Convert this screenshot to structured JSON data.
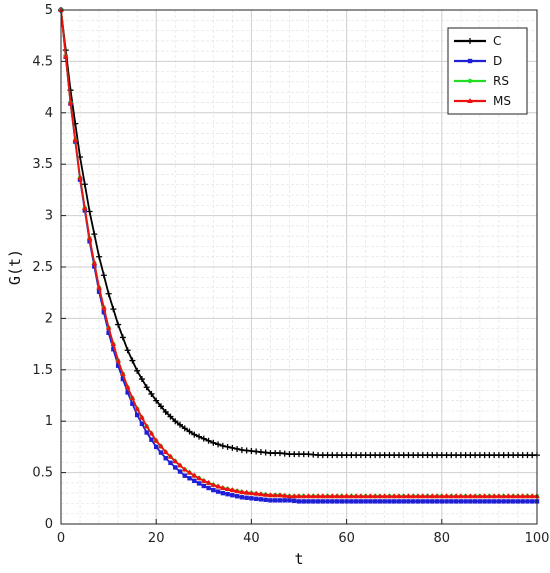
{
  "chart_data": {
    "type": "line",
    "title": "",
    "xlabel": "t",
    "ylabel": "G(t)",
    "xlim": [
      0,
      100
    ],
    "ylim": [
      0,
      5
    ],
    "x_ticks": [
      "0",
      "20",
      "40",
      "60",
      "80",
      "100"
    ],
    "y_ticks": [
      "0",
      "0.5",
      "1",
      "1.5",
      "2",
      "2.5",
      "3",
      "3.5",
      "4",
      "4.5",
      "5"
    ],
    "grid": true,
    "minor_grid": true,
    "legend_position": "top-right",
    "x": [
      0,
      2,
      4,
      6,
      8,
      10,
      12,
      14,
      16,
      18,
      20,
      22,
      24,
      26,
      28,
      30,
      32,
      34,
      36,
      38,
      40,
      42,
      44,
      46,
      48,
      50,
      52,
      54,
      56,
      58,
      60,
      62,
      64,
      66,
      68,
      70,
      72,
      74,
      76,
      78,
      80,
      82,
      84,
      86,
      88,
      90,
      92,
      94,
      96,
      98,
      100
    ],
    "series": [
      {
        "name": "C",
        "color": "#000000",
        "marker": "plus",
        "values": [
          5.0,
          4.22,
          3.57,
          3.04,
          2.6,
          2.24,
          1.94,
          1.69,
          1.49,
          1.33,
          1.2,
          1.09,
          1.0,
          0.93,
          0.87,
          0.83,
          0.79,
          0.76,
          0.74,
          0.72,
          0.71,
          0.7,
          0.69,
          0.69,
          0.68,
          0.68,
          0.68,
          0.67,
          0.67,
          0.67,
          0.67,
          0.67,
          0.67,
          0.67,
          0.67,
          0.67,
          0.67,
          0.67,
          0.67,
          0.67,
          0.67,
          0.67,
          0.67,
          0.67,
          0.67,
          0.67,
          0.67,
          0.67,
          0.67,
          0.67,
          0.67
        ]
      },
      {
        "name": "D",
        "color": "#1f1fd6",
        "marker": "square",
        "values": [
          5.0,
          4.09,
          3.35,
          2.75,
          2.26,
          1.86,
          1.54,
          1.28,
          1.06,
          0.89,
          0.75,
          0.64,
          0.55,
          0.47,
          0.42,
          0.37,
          0.33,
          0.3,
          0.28,
          0.26,
          0.25,
          0.24,
          0.23,
          0.23,
          0.23,
          0.22,
          0.22,
          0.22,
          0.22,
          0.22,
          0.22,
          0.22,
          0.22,
          0.22,
          0.22,
          0.22,
          0.22,
          0.22,
          0.22,
          0.22,
          0.22,
          0.22,
          0.22,
          0.22,
          0.22,
          0.22,
          0.22,
          0.22,
          0.22,
          0.22,
          0.22
        ]
      },
      {
        "name": "RS",
        "color": "#22dd22",
        "marker": "dot",
        "values": [
          5.0,
          4.1,
          3.37,
          2.78,
          2.3,
          1.91,
          1.59,
          1.33,
          1.12,
          0.95,
          0.81,
          0.7,
          0.61,
          0.53,
          0.47,
          0.42,
          0.38,
          0.35,
          0.33,
          0.31,
          0.3,
          0.29,
          0.28,
          0.28,
          0.27,
          0.27,
          0.27,
          0.27,
          0.27,
          0.27,
          0.27,
          0.27,
          0.27,
          0.27,
          0.27,
          0.27,
          0.27,
          0.27,
          0.27,
          0.27,
          0.27,
          0.27,
          0.27,
          0.27,
          0.27,
          0.27,
          0.27,
          0.27,
          0.27,
          0.27,
          0.27
        ]
      },
      {
        "name": "MS",
        "color": "#ee1111",
        "marker": "triangle",
        "values": [
          5.0,
          4.1,
          3.37,
          2.78,
          2.3,
          1.91,
          1.59,
          1.33,
          1.12,
          0.95,
          0.81,
          0.7,
          0.61,
          0.53,
          0.47,
          0.42,
          0.38,
          0.35,
          0.33,
          0.31,
          0.3,
          0.29,
          0.28,
          0.28,
          0.27,
          0.27,
          0.27,
          0.27,
          0.27,
          0.27,
          0.27,
          0.27,
          0.27,
          0.27,
          0.27,
          0.27,
          0.27,
          0.27,
          0.27,
          0.27,
          0.27,
          0.27,
          0.27,
          0.27,
          0.27,
          0.27,
          0.27,
          0.27,
          0.27,
          0.27,
          0.27
        ]
      }
    ]
  }
}
